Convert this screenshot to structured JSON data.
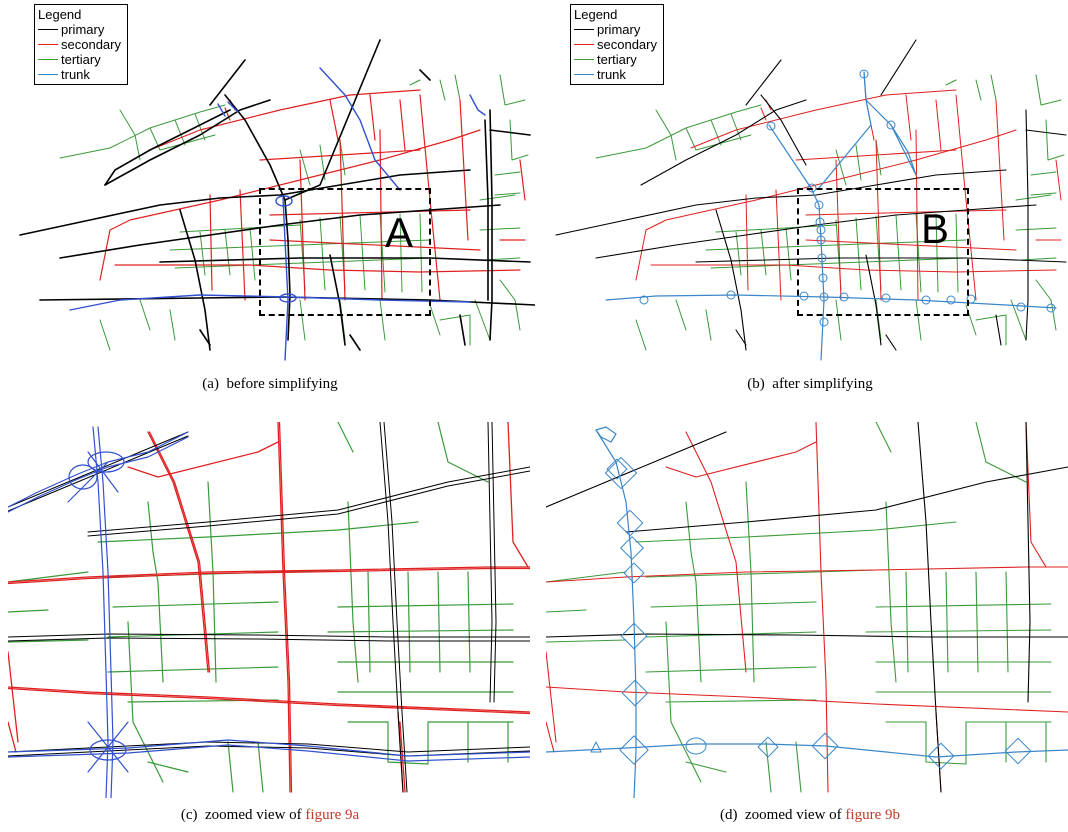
{
  "legend": {
    "title": "Legend",
    "items": [
      {
        "label": "primary",
        "color": "#000000"
      },
      {
        "label": "secondary",
        "color": "#e02020"
      },
      {
        "label": "tertiary",
        "color": "#3a9a3a"
      },
      {
        "label": "trunk",
        "color": "#3a86c8"
      }
    ]
  },
  "panels": {
    "a": {
      "caption_prefix": "(a)",
      "caption": "before simplifying",
      "box_label": "A"
    },
    "b": {
      "caption_prefix": "(b)",
      "caption": "after simplifying",
      "box_label": "B"
    },
    "c": {
      "caption_prefix": "(c)",
      "caption_text": "zoomed view of",
      "caption_ref": "figure 9a"
    },
    "d": {
      "caption_prefix": "(d)",
      "caption_text": "zoomed view of",
      "caption_ref": "figure 9b"
    }
  },
  "colors": {
    "primary": "#000000",
    "secondary": "#e02020",
    "tertiary": "#3a9a3a",
    "trunk_before": "#3050d0",
    "trunk_after": "#3a86c8",
    "caption_ref": "#c0392b"
  }
}
